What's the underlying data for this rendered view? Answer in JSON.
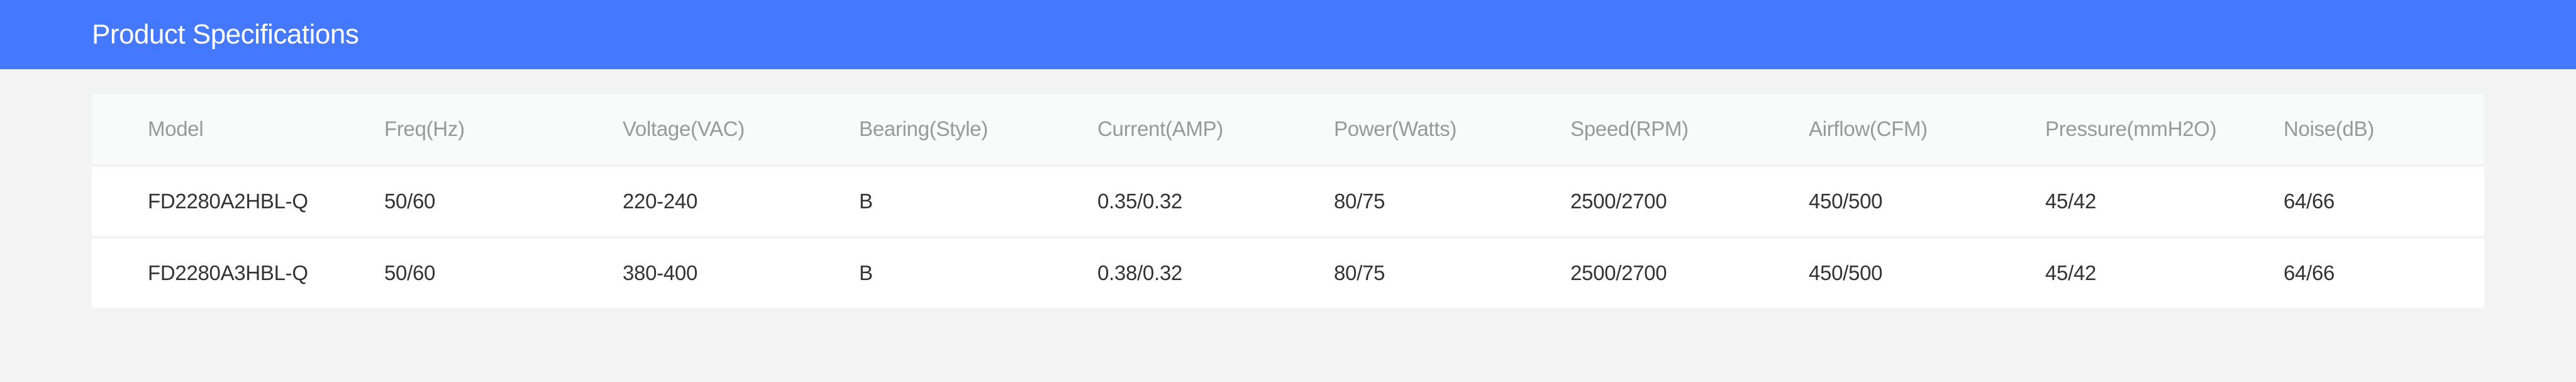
{
  "header": {
    "title": "Product Specifications",
    "bar_color": "#4479ff"
  },
  "table": {
    "columns": [
      "Model",
      "Freq(Hz)",
      "Voltage(VAC)",
      "Bearing(Style)",
      "Current(AMP)",
      "Power(Watts)",
      "Speed(RPM)",
      "Airflow(CFM)",
      "Pressure(mmH2O)",
      "Noise(dB)"
    ],
    "rows": [
      [
        "FD2280A2HBL-Q",
        "50/60",
        "220-240",
        "B",
        "0.35/0.32",
        "80/75",
        "2500/2700",
        "450/500",
        "45/42",
        "64/66"
      ],
      [
        "FD2280A3HBL-Q",
        "50/60",
        "380-400",
        "B",
        "0.38/0.32",
        "80/75",
        "2500/2700",
        "450/500",
        "45/42",
        "64/66"
      ]
    ]
  }
}
